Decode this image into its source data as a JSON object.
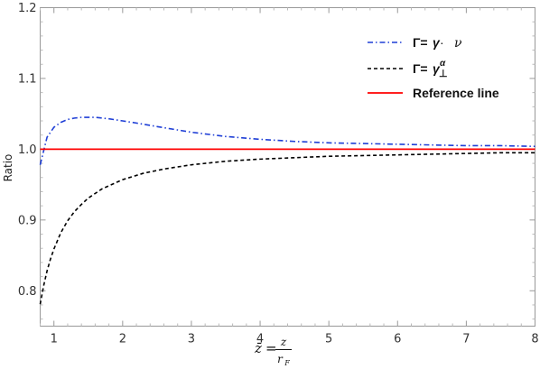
{
  "chart_data": {
    "type": "line",
    "xlabel": "z̄ = z / r_F",
    "ylabel": "Ratio",
    "xlim": [
      0.8,
      8.0
    ],
    "ylim": [
      0.75,
      1.2
    ],
    "x_ticks": [
      1,
      2,
      3,
      4,
      5,
      6,
      7,
      8
    ],
    "y_ticks": [
      0.8,
      0.9,
      1.0,
      1.1,
      1.2
    ],
    "y_tick_labels": [
      "0.8",
      "0.9",
      "1.0",
      "1.1",
      "1.2"
    ],
    "grid": false,
    "legend_position": "top-right",
    "series": [
      {
        "name": "Γ=γ·ν",
        "color": "#1f3fd6",
        "dash": "dash-dot",
        "x": [
          0.8,
          0.9,
          1.0,
          1.1,
          1.2,
          1.3,
          1.4,
          1.5,
          1.6,
          1.7,
          1.8,
          2.0,
          2.2,
          2.5,
          3.0,
          3.5,
          4.0,
          4.5,
          5.0,
          5.5,
          6.0,
          6.5,
          7.0,
          7.5,
          8.0
        ],
        "y": [
          0.978,
          1.017,
          1.031,
          1.038,
          1.042,
          1.044,
          1.045,
          1.045,
          1.045,
          1.044,
          1.043,
          1.04,
          1.037,
          1.032,
          1.024,
          1.018,
          1.014,
          1.011,
          1.009,
          1.008,
          1.007,
          1.006,
          1.005,
          1.005,
          1.004
        ]
      },
      {
        "name": "Γ=γ⊥^α",
        "color": "#000000",
        "dash": "dashed",
        "x": [
          0.8,
          0.85,
          0.9,
          0.95,
          1.0,
          1.1,
          1.2,
          1.3,
          1.4,
          1.5,
          1.7,
          2.0,
          2.3,
          2.6,
          3.0,
          3.5,
          4.0,
          4.5,
          5.0,
          5.5,
          6.0,
          6.5,
          7.0,
          7.5,
          8.0
        ],
        "y": [
          0.781,
          0.807,
          0.828,
          0.845,
          0.859,
          0.882,
          0.899,
          0.912,
          0.922,
          0.931,
          0.944,
          0.957,
          0.966,
          0.972,
          0.978,
          0.983,
          0.986,
          0.988,
          0.99,
          0.991,
          0.992,
          0.993,
          0.994,
          0.995,
          0.995
        ]
      },
      {
        "name": "Reference line",
        "color": "#ff0000",
        "dash": "solid",
        "x": [
          0.8,
          8.0
        ],
        "y": [
          1.0,
          1.0
        ]
      }
    ]
  },
  "legend": {
    "entries": [
      {
        "prefix": "Γ=",
        "symbol": "γ",
        "mid": " · ",
        "tail": "ν"
      },
      {
        "prefix": "Γ=",
        "symbol": "γ",
        "sub": "⊥",
        "sup": "α"
      },
      {
        "label": "Reference line"
      }
    ]
  },
  "axes": {
    "ylabel": "Ratio",
    "xlabel_lhs": "z̄",
    "xlabel_eq": "=",
    "xlabel_num": "z",
    "xlabel_den": "r",
    "xlabel_den_sub": "F"
  }
}
